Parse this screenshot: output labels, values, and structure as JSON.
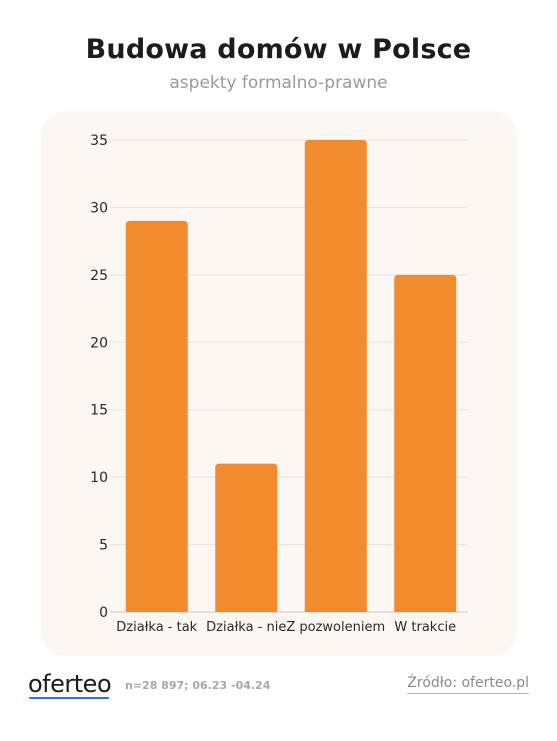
{
  "header": {
    "title": "Budowa domów w Polsce",
    "subtitle": "aspekty formalno-prawne"
  },
  "footer": {
    "brand": "oferteo",
    "meta": "n=28 897; 06.23 -04.24",
    "source": "Źródło: oferteo.pl"
  },
  "colors": {
    "bar": "#f28a2e",
    "card_bg": "#fcf7f3",
    "grid": "#e6e1dc",
    "logo_accent": "#2b6cf6"
  },
  "chart_data": {
    "type": "bar",
    "title": "Budowa domów w Polsce",
    "subtitle": "aspekty formalno-prawne",
    "categories": [
      "Działka - tak",
      "Działka - nie",
      "Z pozwoleniem",
      "W trakcie"
    ],
    "values": [
      29,
      11,
      35,
      25
    ],
    "ylim": [
      0,
      35
    ],
    "yticks": [
      0,
      5,
      10,
      15,
      20,
      25,
      30,
      35
    ],
    "xlabel": "",
    "ylabel": "",
    "grid": true,
    "legend": "none"
  }
}
